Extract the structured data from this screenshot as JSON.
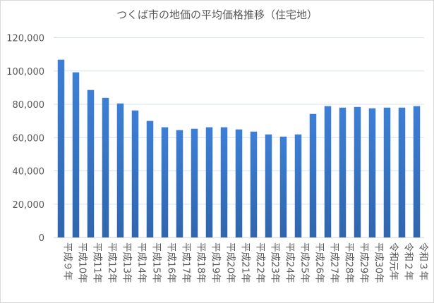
{
  "chart_data": {
    "type": "bar",
    "title": "つくば市の地価の平均価格推移（住宅地）",
    "categories": [
      "平成９年",
      "平成10年",
      "平成11年",
      "平成12年",
      "平成13年",
      "平成14年",
      "平成15年",
      "平成16年",
      "平成17年",
      "平成18年",
      "平成19年",
      "平成20年",
      "平成21年",
      "平成22年",
      "平成23年",
      "平成24年",
      "平成25年",
      "平成26年",
      "平成27年",
      "平成28年",
      "平成29年",
      "平成30年",
      "令和元年",
      "令和２年",
      "令和３年"
    ],
    "values": [
      106800,
      99200,
      88600,
      83900,
      80500,
      76300,
      70000,
      66200,
      64500,
      65300,
      66200,
      66200,
      64900,
      63600,
      61900,
      60600,
      61900,
      74200,
      78900,
      78000,
      78400,
      77600,
      78000,
      78000,
      78900
    ],
    "ylim": [
      0,
      120000
    ],
    "yticks": [
      "0",
      "20,000",
      "40,000",
      "60,000",
      "80,000",
      "100,000",
      "120,000"
    ],
    "grid": true,
    "legend": "none",
    "bar_color": "#3a78c9"
  }
}
